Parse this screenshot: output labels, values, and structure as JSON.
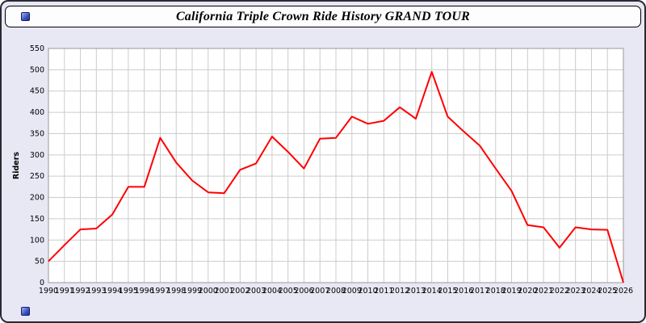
{
  "window": {
    "title": "California Triple Crown Ride History GRAND TOUR"
  },
  "colors": {
    "background": "#e8e8f5",
    "titlebar_bg": "#fdfdfd",
    "plot_bg": "#ffffff",
    "grid": "#cccccc",
    "plot_border": "#999999",
    "line": "#ff0000",
    "icon_blue": "#3a52c4"
  },
  "chart_data": {
    "type": "line",
    "title": "California Triple Crown Ride History GRAND TOUR",
    "xlabel": "",
    "ylabel": "Riders",
    "grid": true,
    "legend": "none",
    "ylim": [
      0,
      550
    ],
    "ytick_step": 50,
    "x": [
      1990,
      1991,
      1992,
      1993,
      1994,
      1995,
      1996,
      1997,
      1998,
      1999,
      2000,
      2001,
      2002,
      2003,
      2004,
      2005,
      2006,
      2007,
      2008,
      2009,
      2010,
      2011,
      2012,
      2013,
      2014,
      2015,
      2016,
      2017,
      2018,
      2019,
      2020,
      2021,
      2022,
      2023,
      2024,
      2025,
      2026
    ],
    "series": [
      {
        "name": "Riders",
        "color": "#ff0000",
        "values": [
          50,
          88,
          125,
          127,
          160,
          225,
          225,
          340,
          282,
          240,
          212,
          210,
          265,
          280,
          343,
          307,
          268,
          338,
          340,
          390,
          373,
          380,
          412,
          385,
          495,
          390,
          355,
          322,
          268,
          215,
          135,
          130,
          82,
          130,
          125,
          124,
          0
        ]
      }
    ]
  }
}
